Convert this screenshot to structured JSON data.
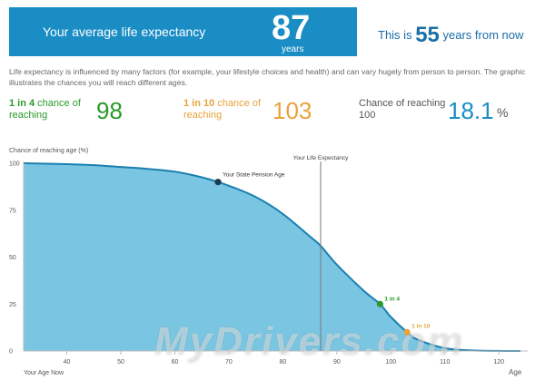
{
  "header": {
    "label": "Your average life expectancy",
    "value": "87",
    "unit": "years"
  },
  "years_from_now": {
    "prefix": "This is",
    "value": "55",
    "suffix": "years from now"
  },
  "intro": "Life expectancy is influenced by many factors (for example, your lifestyle choices and health) and can vary hugely from person to person. The graphic illustrates the chances you will reach different ages.",
  "stats": [
    {
      "bold": "1 in 4",
      "rest": " chance of reaching",
      "value": "98",
      "color": "#2a9a2a"
    },
    {
      "bold": "1 in 10",
      "rest": " chance of reaching",
      "value": "103",
      "color": "#e8a33a"
    },
    {
      "bold": "",
      "rest": "Chance of reaching 100",
      "value": "18.1",
      "unit": "%",
      "color": "#1a8dc5"
    }
  ],
  "watermark": "MyDrivers.com",
  "chart_data": {
    "type": "area",
    "ylabel": "Chance of reaching age (%)",
    "xlabel": "Age",
    "x_start_label": "Your Age Now",
    "xlim": [
      32,
      124
    ],
    "ylim": [
      0,
      100
    ],
    "x_ticks": [
      40,
      50,
      60,
      70,
      80,
      90,
      100,
      110,
      120
    ],
    "y_ticks": [
      0,
      25,
      50,
      75,
      100
    ],
    "grid": false,
    "fill_color": "#7ac6e2",
    "line_color": "#1a7fb0",
    "series": [
      {
        "x": [
          32,
          40,
          45,
          50,
          55,
          60,
          65,
          68,
          70,
          75,
          80,
          85,
          87,
          90,
          95,
          98,
          100,
          103,
          105,
          110,
          115,
          120,
          124
        ],
        "values": [
          100,
          99.5,
          99,
          98,
          97,
          95.5,
          92.5,
          90,
          88,
          82,
          73,
          61,
          56,
          46,
          32,
          25,
          18.1,
          10,
          6,
          1.5,
          0.3,
          0.05,
          0
        ]
      }
    ],
    "reference_line": {
      "x": 87,
      "label": "Your Life Expectancy"
    },
    "markers": [
      {
        "x": 68,
        "y": 90,
        "label": "Your State Pension Age",
        "color": "#1e3a50"
      },
      {
        "x": 98,
        "y": 25,
        "label": "1 in 4",
        "color": "#2a9a2a"
      },
      {
        "x": 103,
        "y": 10,
        "label": "1 in 10",
        "color": "#e8a33a"
      }
    ]
  }
}
